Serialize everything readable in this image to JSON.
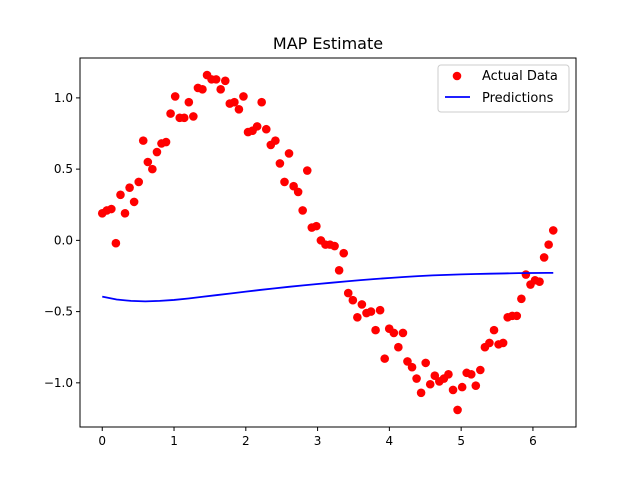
{
  "chart_data": {
    "type": "scatter",
    "title": "MAP Estimate",
    "xlabel": "",
    "ylabel": "",
    "xlim": [
      -0.31,
      6.6
    ],
    "ylim": [
      -1.31,
      1.28
    ],
    "xticks": [
      0,
      1,
      2,
      3,
      4,
      5,
      6
    ],
    "yticks": [
      -1.0,
      -0.5,
      0.0,
      0.5,
      1.0
    ],
    "xtick_labels": [
      "0",
      "1",
      "2",
      "3",
      "4",
      "5",
      "6"
    ],
    "ytick_labels": [
      "−1.0",
      "−0.5",
      "0.0",
      "0.5",
      "1.0"
    ],
    "grid": false,
    "legend_position": "upper right",
    "series": [
      {
        "name": "Actual Data",
        "kind": "scatter",
        "color": "#ff0000",
        "marker": "circle",
        "x": [
          0.0,
          0.064,
          0.127,
          0.19,
          0.254,
          0.317,
          0.381,
          0.444,
          0.508,
          0.571,
          0.635,
          0.698,
          0.762,
          0.825,
          0.889,
          0.952,
          1.016,
          1.079,
          1.142,
          1.206,
          1.269,
          1.333,
          1.396,
          1.46,
          1.523,
          1.587,
          1.65,
          1.714,
          1.777,
          1.841,
          1.904,
          1.967,
          2.031,
          2.094,
          2.158,
          2.221,
          2.285,
          2.348,
          2.412,
          2.475,
          2.539,
          2.602,
          2.666,
          2.729,
          2.792,
          2.856,
          2.919,
          2.983,
          3.046,
          3.11,
          3.173,
          3.237,
          3.3,
          3.364,
          3.427,
          3.491,
          3.554,
          3.617,
          3.681,
          3.744,
          3.808,
          3.871,
          3.935,
          3.998,
          4.062,
          4.125,
          4.189,
          4.252,
          4.316,
          4.379,
          4.442,
          4.506,
          4.569,
          4.633,
          4.696,
          4.76,
          4.823,
          4.887,
          4.95,
          5.014,
          5.077,
          5.141,
          5.204,
          5.267,
          5.331,
          5.394,
          5.458,
          5.521,
          5.585,
          5.648,
          5.712,
          5.775,
          5.839,
          5.902,
          5.966,
          6.029,
          6.092,
          6.156,
          6.219,
          6.283
        ],
        "y": [
          0.19,
          0.21,
          0.22,
          -0.02,
          0.32,
          0.19,
          0.37,
          0.27,
          0.41,
          0.7,
          0.55,
          0.5,
          0.62,
          0.68,
          0.69,
          0.89,
          1.01,
          0.86,
          0.86,
          0.97,
          0.87,
          1.07,
          1.06,
          1.16,
          1.13,
          1.13,
          1.06,
          1.12,
          0.96,
          0.97,
          0.92,
          1.01,
          0.76,
          0.77,
          0.8,
          0.97,
          0.78,
          0.67,
          0.7,
          0.54,
          0.41,
          0.61,
          0.38,
          0.34,
          0.21,
          0.49,
          0.09,
          0.1,
          0.0,
          -0.03,
          -0.03,
          -0.04,
          -0.21,
          -0.09,
          -0.37,
          -0.42,
          -0.54,
          -0.45,
          -0.51,
          -0.5,
          -0.63,
          -0.49,
          -0.83,
          -0.62,
          -0.65,
          -0.75,
          -0.65,
          -0.85,
          -0.89,
          -0.97,
          -1.07,
          -0.86,
          -1.01,
          -0.95,
          -0.99,
          -0.97,
          -0.94,
          -1.05,
          -1.19,
          -1.03,
          -0.93,
          -0.94,
          -1.02,
          -0.91,
          -0.75,
          -0.72,
          -0.63,
          -0.73,
          -0.72,
          -0.54,
          -0.53,
          -0.53,
          -0.41,
          -0.24,
          -0.31,
          -0.28,
          -0.29,
          -0.12,
          -0.03,
          0.07
        ]
      },
      {
        "name": "Predictions",
        "kind": "line",
        "color": "#0000ff",
        "x": [
          0.0,
          0.2,
          0.4,
          0.6,
          0.8,
          1.0,
          1.2,
          1.4,
          1.6,
          1.8,
          2.0,
          2.2,
          2.4,
          2.6,
          2.8,
          3.0,
          3.2,
          3.4,
          3.6,
          3.8,
          4.0,
          4.2,
          4.4,
          4.6,
          4.8,
          5.0,
          5.2,
          5.4,
          5.6,
          5.8,
          6.0,
          6.2,
          6.283
        ],
        "y": [
          -0.395,
          -0.415,
          -0.425,
          -0.428,
          -0.425,
          -0.418,
          -0.408,
          -0.396,
          -0.384,
          -0.372,
          -0.36,
          -0.348,
          -0.337,
          -0.326,
          -0.316,
          -0.306,
          -0.297,
          -0.288,
          -0.279,
          -0.271,
          -0.264,
          -0.257,
          -0.251,
          -0.246,
          -0.242,
          -0.239,
          -0.236,
          -0.234,
          -0.232,
          -0.23,
          -0.229,
          -0.228,
          -0.228
        ]
      }
    ]
  }
}
